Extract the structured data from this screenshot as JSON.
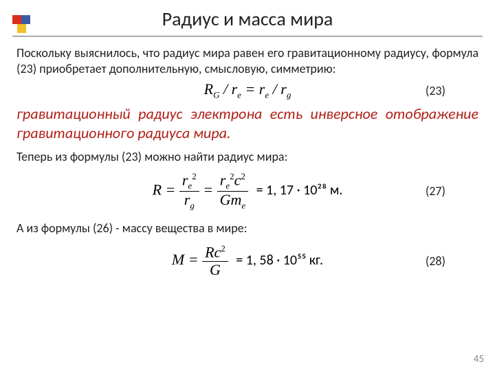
{
  "title": "Радиус и масса мира",
  "para1": "Поскольку выяснилось, что радиус мира равен его гравитационному радиусу, формула (23) приобретает дополнительную, смысловую, симметрию:",
  "eq23_num": "(23)",
  "red_statement": "гравитационный радиус электрона есть инверсное отображение гравитационного радиуса мира.",
  "para2": "Теперь из формулы (23) можно найти радиус мира:",
  "result27": "= 1, 17 · 10²⁸ м.",
  "eq27_num": "(27)",
  "para3": "А из формулы (26) - массу вещества в мире:",
  "result28": "= 1, 58 · 10⁵⁵ кг.",
  "eq28_num": "(28)",
  "page_number": "45",
  "colors": {
    "text": "#222222",
    "red": "#b02018",
    "logo_red": "#d92e1c",
    "logo_blue": "#3b5ba5",
    "logo_yellow": "#f2c029",
    "page_num": "#8a8a8a"
  }
}
